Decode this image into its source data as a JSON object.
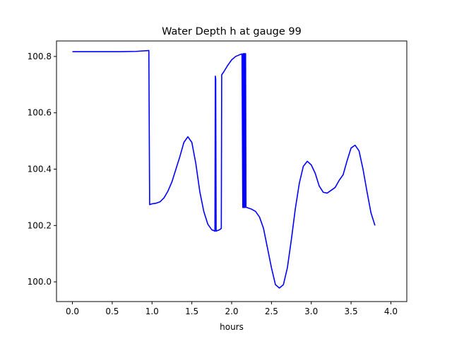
{
  "chart_data": {
    "type": "line",
    "title": "Water Depth h at gauge 99",
    "xlabel": "hours",
    "ylabel": "",
    "xlim": [
      -0.2,
      4.2
    ],
    "ylim": [
      99.93,
      100.855
    ],
    "xticks": [
      0.0,
      0.5,
      1.0,
      1.5,
      2.0,
      2.5,
      3.0,
      3.5,
      4.0
    ],
    "xtick_labels": [
      "0.0",
      "0.5",
      "1.0",
      "1.5",
      "2.0",
      "2.5",
      "3.0",
      "3.5",
      "4.0"
    ],
    "yticks": [
      100.0,
      100.2,
      100.4,
      100.6,
      100.8
    ],
    "ytick_labels": [
      "100.0",
      "100.2",
      "100.4",
      "100.6",
      "100.8"
    ],
    "grid": false,
    "line_color": "#0000ff",
    "series": [
      {
        "points": [
          [
            0.0,
            100.817
          ],
          [
            0.3,
            100.817
          ],
          [
            0.6,
            100.817
          ],
          [
            0.8,
            100.818
          ],
          [
            0.96,
            100.821
          ],
          [
            0.97,
            100.274
          ],
          [
            1.0,
            100.277
          ],
          [
            1.05,
            100.279
          ],
          [
            1.1,
            100.284
          ],
          [
            1.15,
            100.298
          ],
          [
            1.2,
            100.322
          ],
          [
            1.25,
            100.355
          ],
          [
            1.3,
            100.4
          ],
          [
            1.35,
            100.445
          ],
          [
            1.4,
            100.495
          ],
          [
            1.45,
            100.515
          ],
          [
            1.5,
            100.495
          ],
          [
            1.55,
            100.42
          ],
          [
            1.6,
            100.32
          ],
          [
            1.65,
            100.25
          ],
          [
            1.7,
            100.205
          ],
          [
            1.75,
            100.185
          ],
          [
            1.79,
            100.18
          ],
          [
            1.795,
            100.73
          ],
          [
            1.8,
            100.72
          ],
          [
            1.805,
            100.18
          ],
          [
            1.82,
            100.182
          ],
          [
            1.85,
            100.185
          ],
          [
            1.87,
            100.19
          ],
          [
            1.875,
            100.735
          ],
          [
            1.9,
            100.745
          ],
          [
            1.95,
            100.768
          ],
          [
            2.0,
            100.788
          ],
          [
            2.05,
            100.8
          ],
          [
            2.1,
            100.806
          ],
          [
            2.13,
            100.809
          ],
          [
            2.14,
            100.264
          ],
          [
            2.145,
            100.81
          ],
          [
            2.15,
            100.264
          ],
          [
            2.155,
            100.81
          ],
          [
            2.16,
            100.264
          ],
          [
            2.165,
            100.81
          ],
          [
            2.17,
            100.264
          ],
          [
            2.175,
            100.81
          ],
          [
            2.18,
            100.265
          ],
          [
            2.25,
            100.258
          ],
          [
            2.3,
            100.25
          ],
          [
            2.35,
            100.23
          ],
          [
            2.4,
            100.19
          ],
          [
            2.45,
            100.12
          ],
          [
            2.5,
            100.05
          ],
          [
            2.55,
            99.99
          ],
          [
            2.6,
            99.978
          ],
          [
            2.65,
            99.99
          ],
          [
            2.7,
            100.05
          ],
          [
            2.75,
            100.15
          ],
          [
            2.8,
            100.26
          ],
          [
            2.85,
            100.35
          ],
          [
            2.9,
            100.41
          ],
          [
            2.95,
            100.428
          ],
          [
            3.0,
            100.415
          ],
          [
            3.05,
            100.385
          ],
          [
            3.1,
            100.34
          ],
          [
            3.15,
            100.318
          ],
          [
            3.2,
            100.315
          ],
          [
            3.25,
            100.325
          ],
          [
            3.3,
            100.335
          ],
          [
            3.35,
            100.36
          ],
          [
            3.4,
            100.38
          ],
          [
            3.45,
            100.43
          ],
          [
            3.5,
            100.475
          ],
          [
            3.55,
            100.485
          ],
          [
            3.6,
            100.465
          ],
          [
            3.65,
            100.4
          ],
          [
            3.7,
            100.32
          ],
          [
            3.75,
            100.245
          ],
          [
            3.8,
            100.2
          ]
        ]
      }
    ]
  }
}
